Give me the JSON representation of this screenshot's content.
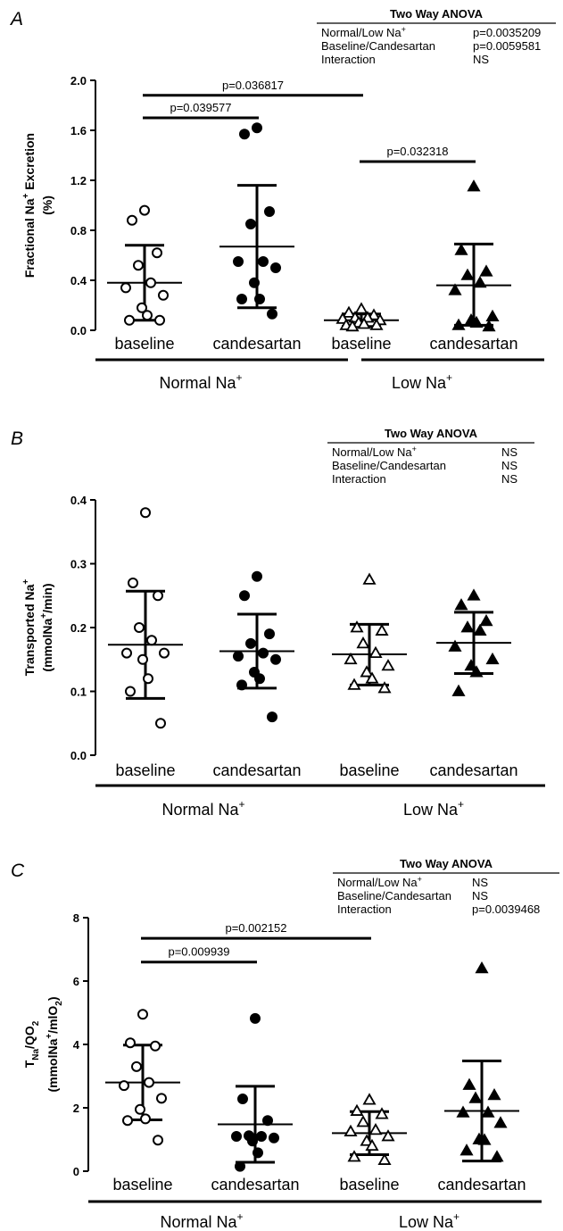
{
  "chart_data": [
    {
      "panel": "A",
      "type": "scatter",
      "ylabel": [
        "Fractional Na",
        "+",
        " Excretion",
        "(%)"
      ],
      "ylim": [
        0,
        2.0
      ],
      "yticks": [
        "0.0",
        "0.4",
        "0.8",
        "1.2",
        "1.6",
        "2.0"
      ],
      "categories": [
        "baseline",
        "candesartan",
        "baseline",
        "candesartan"
      ],
      "groups": [
        {
          "label": "Normal Na",
          "sup": "+"
        },
        {
          "label": "Low Na",
          "sup": "+"
        }
      ],
      "anova": {
        "title": "Two Way ANOVA",
        "rows": [
          {
            "label": "Normal/Low Na",
            "sup": "+",
            "value": "p=0.0035209"
          },
          {
            "label": "Baseline/Candesartan",
            "sup": "",
            "value": "p=0.0059581"
          },
          {
            "label": "Interaction",
            "sup": "",
            "value": "NS"
          }
        ]
      },
      "series": [
        {
          "marker": "circle-open",
          "mean": 0.38,
          "sd_low": 0.08,
          "sd_high": 0.68,
          "values": [
            0.96,
            0.88,
            0.62,
            0.52,
            0.38,
            0.34,
            0.28,
            0.18,
            0.12,
            0.08,
            0.08
          ]
        },
        {
          "marker": "circle-filled",
          "mean": 0.67,
          "sd_low": 0.18,
          "sd_high": 1.16,
          "values": [
            1.62,
            1.57,
            0.95,
            0.85,
            0.55,
            0.55,
            0.5,
            0.38,
            0.25,
            0.25,
            0.13
          ]
        },
        {
          "marker": "triangle-open",
          "mean": 0.08,
          "sd_low": 0.03,
          "sd_high": 0.13,
          "values": [
            0.17,
            0.14,
            0.12,
            0.1,
            0.1,
            0.09,
            0.08,
            0.06,
            0.05,
            0.04,
            0.04,
            0.03
          ]
        },
        {
          "marker": "triangle-filled",
          "mean": 0.36,
          "sd_low": 0.04,
          "sd_high": 0.69,
          "values": [
            1.15,
            0.64,
            0.47,
            0.44,
            0.38,
            0.32,
            0.11,
            0.08,
            0.06,
            0.04,
            0.03
          ]
        }
      ],
      "comparisons": [
        {
          "from": 0,
          "to": 1,
          "level": 1.7,
          "label": "p=0.039577"
        },
        {
          "from": 0,
          "to": 2,
          "level": 1.88,
          "label": "p=0.036817"
        },
        {
          "from": 2,
          "to": 3,
          "level": 1.35,
          "label": "p=0.032318"
        }
      ]
    },
    {
      "panel": "B",
      "type": "scatter",
      "ylabel": [
        "Transported Na",
        "+",
        "(mmolNa",
        "+",
        "/min)"
      ],
      "ylim": [
        0,
        0.4
      ],
      "yticks": [
        "0.0",
        "0.1",
        "0.2",
        "0.3",
        "0.4"
      ],
      "categories": [
        "baseline",
        "candesartan",
        "baseline",
        "candesartan"
      ],
      "groups": [
        {
          "label": "Normal Na",
          "sup": "+"
        },
        {
          "label": "Low Na",
          "sup": "+"
        }
      ],
      "anova": {
        "title": "Two Way ANOVA",
        "rows": [
          {
            "label": "Normal/Low Na",
            "sup": "+",
            "value": "NS"
          },
          {
            "label": "Baseline/Candesartan",
            "sup": "",
            "value": "NS"
          },
          {
            "label": "Interaction",
            "sup": "",
            "value": "NS"
          }
        ]
      },
      "series": [
        {
          "marker": "circle-open",
          "mean": 0.173,
          "sd_low": 0.089,
          "sd_high": 0.257,
          "values": [
            0.38,
            0.27,
            0.25,
            0.2,
            0.18,
            0.16,
            0.16,
            0.15,
            0.12,
            0.1,
            0.05
          ]
        },
        {
          "marker": "circle-filled",
          "mean": 0.163,
          "sd_low": 0.105,
          "sd_high": 0.221,
          "values": [
            0.28,
            0.25,
            0.19,
            0.175,
            0.16,
            0.155,
            0.15,
            0.13,
            0.12,
            0.11,
            0.06
          ]
        },
        {
          "marker": "triangle-open",
          "mean": 0.158,
          "sd_low": 0.11,
          "sd_high": 0.205,
          "values": [
            0.275,
            0.2,
            0.195,
            0.175,
            0.16,
            0.15,
            0.14,
            0.13,
            0.12,
            0.11,
            0.105
          ]
        },
        {
          "marker": "triangle-filled",
          "mean": 0.176,
          "sd_low": 0.128,
          "sd_high": 0.224,
          "values": [
            0.25,
            0.235,
            0.21,
            0.2,
            0.195,
            0.17,
            0.15,
            0.14,
            0.13,
            0.1
          ]
        }
      ],
      "comparisons": []
    },
    {
      "panel": "C",
      "type": "scatter",
      "ylabel": [
        "T",
        "Na",
        "/QO",
        "2",
        "(mmolNa",
        "+",
        "/mlO",
        "2",
        ")"
      ],
      "ylim": [
        0,
        8
      ],
      "yticks": [
        "0",
        "2",
        "4",
        "6",
        "8"
      ],
      "categories": [
        "baseline",
        "candesartan",
        "baseline",
        "candesartan"
      ],
      "groups": [
        {
          "label": "Normal Na",
          "sup": "+"
        },
        {
          "label": "Low Na",
          "sup": "+"
        }
      ],
      "anova": {
        "title": "Two Way ANOVA",
        "rows": [
          {
            "label": "Normal/Low Na",
            "sup": "+",
            "value": "NS"
          },
          {
            "label": "Baseline/Candesartan",
            "sup": "",
            "value": "NS"
          },
          {
            "label": "Interaction",
            "sup": "",
            "value": "p=0.0039468"
          }
        ]
      },
      "series": [
        {
          "marker": "circle-open",
          "mean": 2.8,
          "sd_low": 1.62,
          "sd_high": 3.98,
          "values": [
            4.95,
            4.05,
            3.95,
            3.3,
            2.8,
            2.7,
            2.3,
            1.95,
            1.65,
            1.6,
            0.98
          ]
        },
        {
          "marker": "circle-filled",
          "mean": 1.48,
          "sd_low": 0.28,
          "sd_high": 2.68,
          "values": [
            4.82,
            2.28,
            1.6,
            1.12,
            1.1,
            1.1,
            1.05,
            0.95,
            0.58,
            0.15
          ]
        },
        {
          "marker": "triangle-open",
          "mean": 1.2,
          "sd_low": 0.52,
          "sd_high": 1.88,
          "values": [
            2.25,
            1.9,
            1.8,
            1.55,
            1.3,
            1.25,
            1.1,
            0.95,
            0.8,
            0.45,
            0.35
          ]
        },
        {
          "marker": "triangle-filled",
          "mean": 1.9,
          "sd_low": 0.32,
          "sd_high": 3.48,
          "values": [
            6.4,
            2.72,
            2.4,
            2.3,
            1.85,
            1.85,
            1.52,
            1.0,
            0.98,
            0.65,
            0.45
          ]
        }
      ],
      "comparisons": [
        {
          "from": 0,
          "to": 1,
          "level": 6.6,
          "label": "p=0.009939"
        },
        {
          "from": 0,
          "to": 2,
          "level": 7.35,
          "label": "p=0.002152"
        }
      ]
    }
  ]
}
